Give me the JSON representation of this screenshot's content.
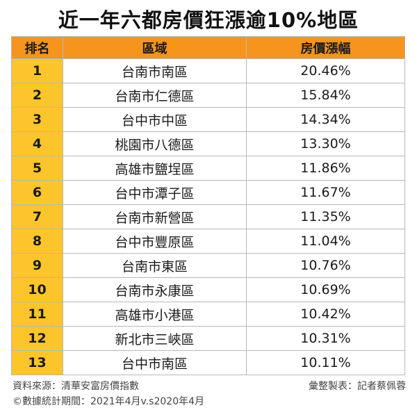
{
  "title": "近一年六都房價狂漲逾10%地區",
  "table": {
    "headers": {
      "rank": "排名",
      "area": "區域",
      "rise": "房價漲幅"
    },
    "rows": [
      {
        "rank": "1",
        "area": "台南市南區",
        "rise": "20.46%"
      },
      {
        "rank": "2",
        "area": "台南市仁德區",
        "rise": "15.84%"
      },
      {
        "rank": "3",
        "area": "台中市中區",
        "rise": "14.34%"
      },
      {
        "rank": "4",
        "area": "桃園市八德區",
        "rise": "13.30%"
      },
      {
        "rank": "5",
        "area": "高雄市鹽埕區",
        "rise": "11.86%"
      },
      {
        "rank": "6",
        "area": "台中市潭子區",
        "rise": "11.67%"
      },
      {
        "rank": "7",
        "area": "台南市新營區",
        "rise": "11.35%"
      },
      {
        "rank": "8",
        "area": "台中市豐原區",
        "rise": "11.04%"
      },
      {
        "rank": "9",
        "area": "台南市東區",
        "rise": "10.76%"
      },
      {
        "rank": "10",
        "area": "台南市永康區",
        "rise": "10.69%"
      },
      {
        "rank": "11",
        "area": "高雄市小港區",
        "rise": "10.42%"
      },
      {
        "rank": "12",
        "area": "新北市三峽區",
        "rise": "10.31%"
      },
      {
        "rank": "13",
        "area": "台中市南區",
        "rise": "10.11%"
      }
    ]
  },
  "footer": {
    "source": "資料來源：清華安富房價指數",
    "compiled_by": "彙整製表：記者蔡佩蓉",
    "period": "©數據統計期間：2021年4月v.s2020年4月"
  },
  "colors": {
    "header_bg": "#f7941d",
    "rank_bg": "#fdc52c"
  }
}
